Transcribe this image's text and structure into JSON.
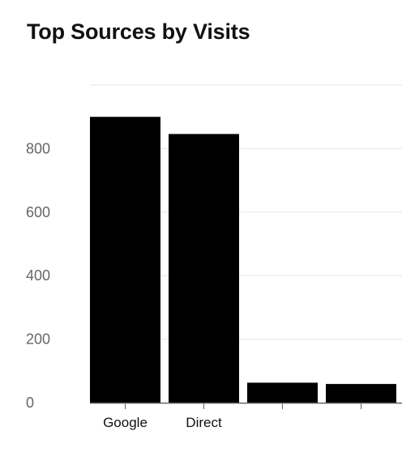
{
  "chart_data": {
    "type": "bar",
    "title": "Top Sources by Visits",
    "xlabel": "",
    "ylabel": "",
    "categories": [
      "Google",
      "Direct",
      "",
      ""
    ],
    "values": [
      900,
      846,
      63,
      59
    ],
    "yticks": [
      0,
      200,
      400,
      600,
      800
    ],
    "ylim": [
      0,
      1000
    ],
    "grid": true,
    "bar_color": "#000000"
  }
}
